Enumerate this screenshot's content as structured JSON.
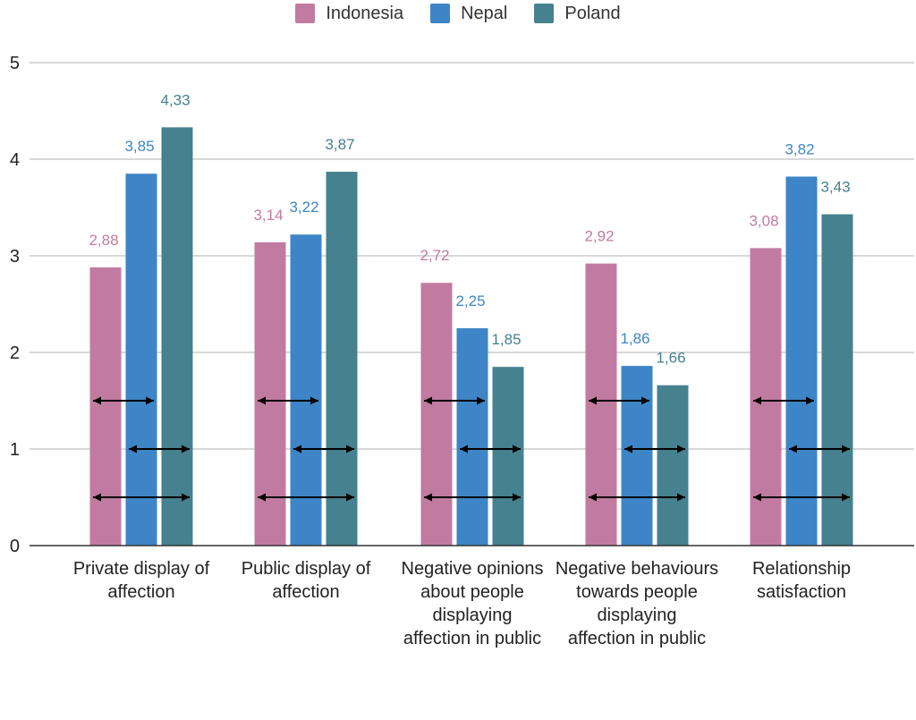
{
  "chart_data": {
    "type": "bar",
    "title": "",
    "xlabel": "",
    "ylabel": "",
    "ylim": [
      0,
      5
    ],
    "yticks": [
      "0",
      "1",
      "2",
      "3",
      "4",
      "5"
    ],
    "grid": true,
    "legend_position": "top-center",
    "categories": [
      "Private display of affection",
      "Public display of affection",
      "Negative opinions about people displaying affection in public",
      "Negative behaviours towards people displaying affection in public",
      "Relationship satisfaction"
    ],
    "series": [
      {
        "name": "Indonesia",
        "color": "#c27ba0",
        "values": [
          2.88,
          3.14,
          2.72,
          2.92,
          3.08
        ],
        "labels": [
          "2,88",
          "3,14",
          "2,72",
          "2,92",
          "3,08"
        ]
      },
      {
        "name": "Nepal",
        "color": "#3d85c6",
        "values": [
          3.85,
          3.22,
          2.25,
          1.86,
          3.82
        ],
        "labels": [
          "3,85",
          "3,22",
          "2,25",
          "1,86",
          "3,82"
        ]
      },
      {
        "name": "Poland",
        "color": "#45818e",
        "values": [
          4.33,
          3.87,
          1.85,
          1.66,
          3.43
        ],
        "labels": [
          "4,33",
          "3,87",
          "1,85",
          "1,66",
          "3,43"
        ]
      }
    ],
    "annotations": "double-headed arrows between series pairs (Indonesia–Nepal at 1.5, Nepal–Poland at 1.0, Indonesia–Poland at 0.5) in every category"
  }
}
